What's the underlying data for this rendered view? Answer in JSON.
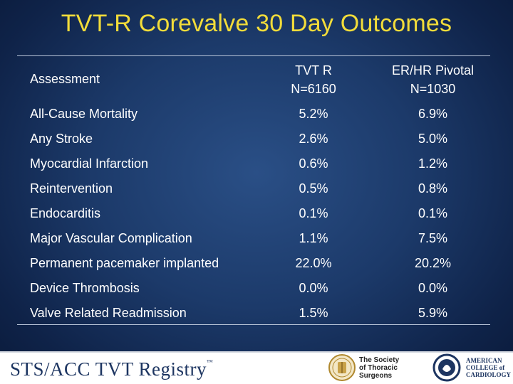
{
  "title": "TVT-R Corevalve 30 Day Outcomes",
  "table": {
    "header": {
      "assessment": "Assessment",
      "col1_line1": "TVT R",
      "col1_line2": "N=6160",
      "col2_line1": "ER/HR Pivotal",
      "col2_line2": "N=1030"
    },
    "rows": [
      {
        "label": "All-Cause Mortality",
        "tvt": "5.2%",
        "pivotal": "6.9%"
      },
      {
        "label": "Any Stroke",
        "tvt": "2.6%",
        "pivotal": "5.0%"
      },
      {
        "label": "Myocardial Infarction",
        "tvt": "0.6%",
        "pivotal": "1.2%"
      },
      {
        "label": "Reintervention",
        "tvt": "0.5%",
        "pivotal": "0.8%"
      },
      {
        "label": "Endocarditis",
        "tvt": "0.1%",
        "pivotal": "0.1%"
      },
      {
        "label": "Major Vascular Complication",
        "tvt": "1.1%",
        "pivotal": "7.5%"
      },
      {
        "label": "Permanent pacemaker implanted",
        "tvt": "22.0%",
        "pivotal": "20.2%"
      },
      {
        "label": "Device Thrombosis",
        "tvt": "0.0%",
        "pivotal": "0.0%"
      },
      {
        "label": "Valve Related Readmission",
        "tvt": "1.5%",
        "pivotal": "5.9%"
      }
    ]
  },
  "footer": {
    "registry": "STS/ACC TVT Registry",
    "registry_tm": "™",
    "sts_line1": "The Society",
    "sts_line2": "of Thoracic",
    "sts_line3": "Surgeons",
    "acc_line1": "AMERICAN",
    "acc_line2": "COLLEGE of",
    "acc_line3": "CARDIOLOGY"
  }
}
